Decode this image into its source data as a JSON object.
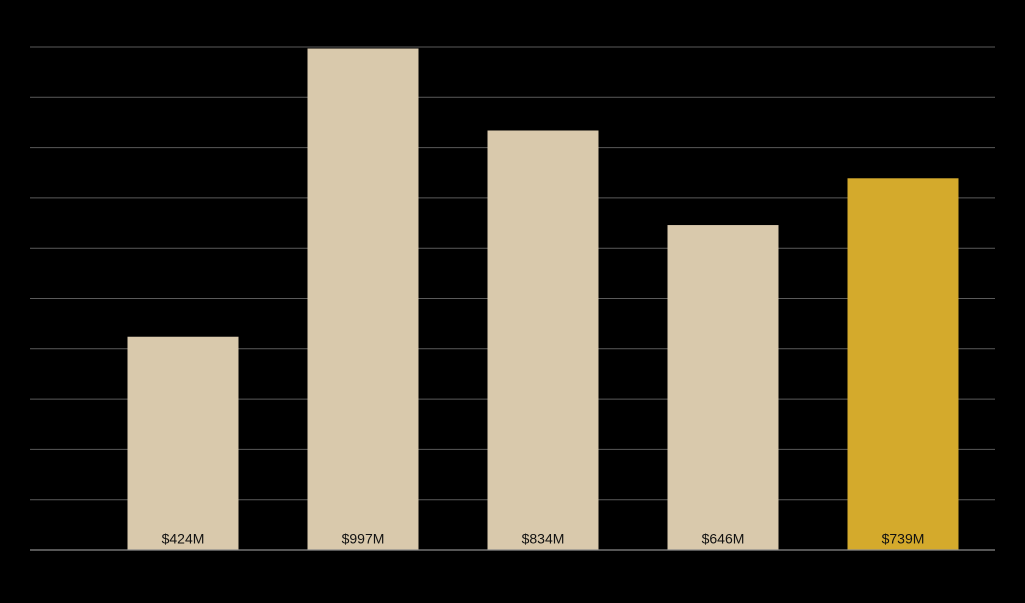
{
  "chart_data": {
    "type": "bar",
    "categories": [
      null,
      null,
      null,
      null,
      null
    ],
    "values": [
      424,
      997,
      834,
      646,
      739
    ],
    "value_labels": [
      "$424M",
      "$997M",
      "$834M",
      "$646M",
      "$739M"
    ],
    "colors": [
      "#d9c9ac",
      "#d9c9ac",
      "#d9c9ac",
      "#d9c9ac",
      "#d4aa2c"
    ],
    "ylim": [
      0,
      1000
    ],
    "yticks": [
      0,
      100,
      200,
      300,
      400,
      500,
      600,
      700,
      800,
      900,
      1000
    ],
    "grid": true
  }
}
